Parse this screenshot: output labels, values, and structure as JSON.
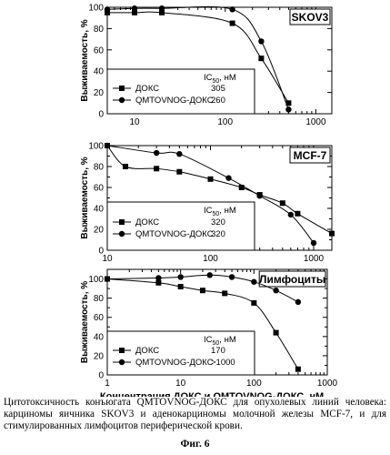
{
  "chart_data": [
    {
      "type": "line",
      "panel_label": "SKOV3",
      "ylabel": "Выживаемость, %",
      "xscale": "log",
      "xlim": [
        5,
        1500
      ],
      "ylim": [
        0,
        100
      ],
      "yticks": [
        0,
        20,
        40,
        60,
        80,
        100
      ],
      "xticks": [
        10,
        100,
        1000
      ],
      "show_x_tick_labels": true,
      "grid": false,
      "ic50_header": "IC50, нМ",
      "series": [
        {
          "name": "ДОКС",
          "marker": "square",
          "ic50": "305",
          "x": [
            5,
            10,
            20,
            120,
            250,
            500
          ],
          "y": [
            95,
            95,
            95,
            85,
            52,
            10
          ]
        },
        {
          "name": "QMTOVNOG-ДОКС",
          "marker": "circle",
          "ic50": "260",
          "x": [
            5,
            10,
            20,
            120,
            250,
            500
          ],
          "y": [
            98,
            99,
            99,
            98,
            68,
            4
          ]
        }
      ]
    },
    {
      "type": "line",
      "panel_label": "MCF-7",
      "ylabel": "Выживаемость, %",
      "xscale": "log",
      "xlim": [
        10,
        1500
      ],
      "ylim": [
        0,
        100
      ],
      "yticks": [
        0,
        10,
        20,
        30,
        40,
        50,
        60,
        70,
        80,
        90,
        100
      ],
      "xticks": [
        10,
        100,
        1000
      ],
      "show_x_tick_labels": true,
      "grid": false,
      "ic50_header": "IC50, нМ",
      "series": [
        {
          "name": "ДОКС",
          "marker": "square",
          "ic50": "320",
          "x": [
            10,
            15,
            30,
            50,
            100,
            200,
            300,
            500,
            700,
            1500
          ],
          "y": [
            100,
            80,
            78,
            75,
            68,
            60,
            53,
            45,
            35,
            16
          ]
        },
        {
          "name": "QMTOVNOG-ДОКС",
          "marker": "circle",
          "ic50": "320",
          "x": [
            10,
            30,
            50,
            150,
            300,
            600,
            1000
          ],
          "y": [
            100,
            93,
            92,
            69,
            52,
            34,
            7
          ]
        }
      ]
    },
    {
      "type": "line",
      "panel_label": "Лимфоциты",
      "ylabel": "Выживаемость, %",
      "xlabel": "Концентрация ДОКС и QMTOVNOG-ДОКС, нМ",
      "xscale": "log",
      "xlim": [
        1,
        1000
      ],
      "ylim": [
        0,
        110
      ],
      "yticks": [
        0,
        10,
        20,
        30,
        40,
        50,
        60,
        70,
        80,
        90,
        100
      ],
      "xticks": [
        1,
        10,
        100,
        1000
      ],
      "show_x_tick_labels": true,
      "grid": false,
      "ic50_header": "IC50, нМ",
      "series": [
        {
          "name": "ДОКС",
          "marker": "square",
          "ic50": "170",
          "x": [
            1,
            5,
            10,
            20,
            40,
            100,
            200,
            400
          ],
          "y": [
            100,
            96,
            92,
            88,
            85,
            75,
            44,
            6
          ]
        },
        {
          "name": "QMTOVNOG-ДОКС",
          "marker": "circle",
          "ic50": ">1000",
          "x": [
            1,
            5,
            10,
            25,
            50,
            100,
            200,
            400
          ],
          "y": [
            100,
            101,
            102,
            104,
            102,
            97,
            88,
            76
          ]
        }
      ]
    }
  ],
  "caption": "Цитотоксичность конъюгата QMTOVNOG-ДОКС для опухолевых линий человека: карциномы яичника SKOV3 и аденокарциномы молочной железы MCF-7, и для стимулированных лимфоцитов периферической крови.",
  "figure_label": "Фиг. 6",
  "colors": {
    "line": "#000000",
    "background": "#ffffff"
  }
}
